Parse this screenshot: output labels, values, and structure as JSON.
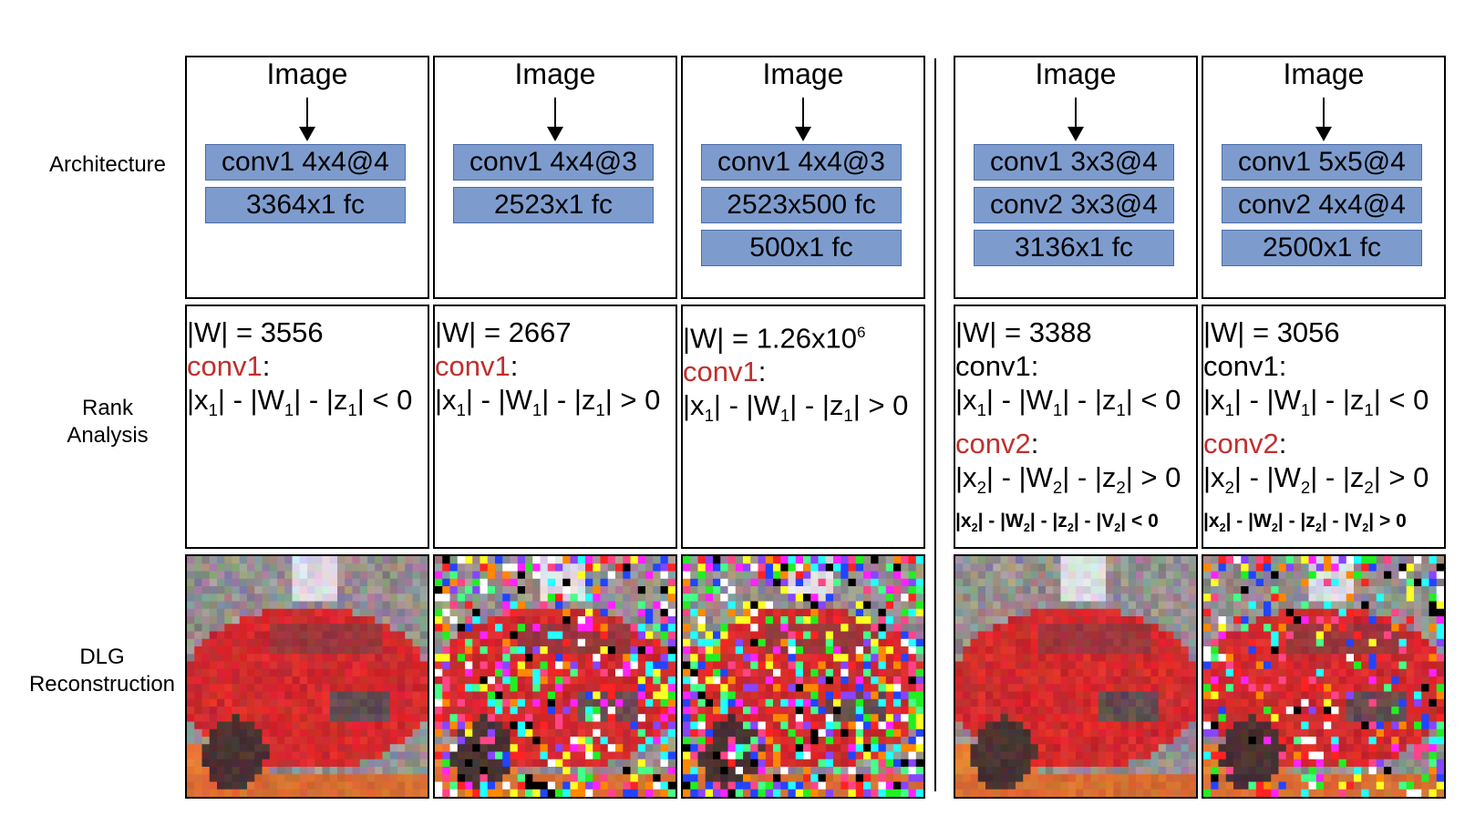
{
  "row_labels": {
    "architecture": "Architecture",
    "rank_line1": "Rank",
    "rank_line2": "Analysis",
    "dlg_line1": "DLG",
    "dlg_line2": "Reconstruction"
  },
  "columns": [
    {
      "image_label": "Image",
      "layers": [
        "conv1 4x4@4",
        "3364x1 fc"
      ],
      "rank": {
        "weights": "|W| = 3556",
        "lines": [
          {
            "kind": "label",
            "text": "conv1",
            "red": true
          },
          {
            "kind": "ineq",
            "idx": "1",
            "op": "< 0"
          }
        ]
      },
      "noise": 0.0
    },
    {
      "image_label": "Image",
      "layers": [
        "conv1 4x4@3",
        "2523x1 fc"
      ],
      "rank": {
        "weights": "|W| = 2667",
        "lines": [
          {
            "kind": "label",
            "text": "conv1",
            "red": true
          },
          {
            "kind": "ineq",
            "idx": "1",
            "op": "> 0"
          }
        ]
      },
      "noise": 0.6
    },
    {
      "image_label": "Image",
      "layers": [
        "conv1 4x4@3",
        "2523x500 fc",
        "500x1 fc"
      ],
      "rank": {
        "weights": "|W| = 1.26x10",
        "weights_sup": "6",
        "lines": [
          {
            "kind": "label",
            "text": "conv1",
            "red": true
          },
          {
            "kind": "ineq",
            "idx": "1",
            "op": "> 0"
          }
        ]
      },
      "noise": 0.75
    },
    {
      "image_label": "Image",
      "layers": [
        "conv1 3x3@4",
        "conv2 3x3@4",
        "3136x1 fc"
      ],
      "rank": {
        "weights": "|W| = 3388",
        "lines": [
          {
            "kind": "label",
            "text": "conv1",
            "red": false
          },
          {
            "kind": "ineq",
            "idx": "1",
            "op": "< 0"
          },
          {
            "kind": "label",
            "text": "conv2",
            "red": true
          },
          {
            "kind": "ineq",
            "idx": "2",
            "op": "> 0"
          },
          {
            "kind": "ineqv",
            "idx": "2",
            "op": "< 0"
          }
        ]
      },
      "noise": 0.0
    },
    {
      "image_label": "Image",
      "layers": [
        "conv1 5x5@4",
        "conv2 4x4@4",
        "2500x1 fc"
      ],
      "rank": {
        "weights": "|W| = 3056",
        "lines": [
          {
            "kind": "label",
            "text": "conv1",
            "red": false
          },
          {
            "kind": "ineq",
            "idx": "1",
            "op": "< 0"
          },
          {
            "kind": "label",
            "text": "conv2",
            "red": true
          },
          {
            "kind": "ineq",
            "idx": "2",
            "op": "> 0"
          },
          {
            "kind": "ineqv",
            "idx": "2",
            "op": "> 0"
          }
        ]
      },
      "noise": 0.4
    }
  ],
  "colors": {
    "layer_fill": "#7d9ccd",
    "accent_red": "#c0302e"
  }
}
